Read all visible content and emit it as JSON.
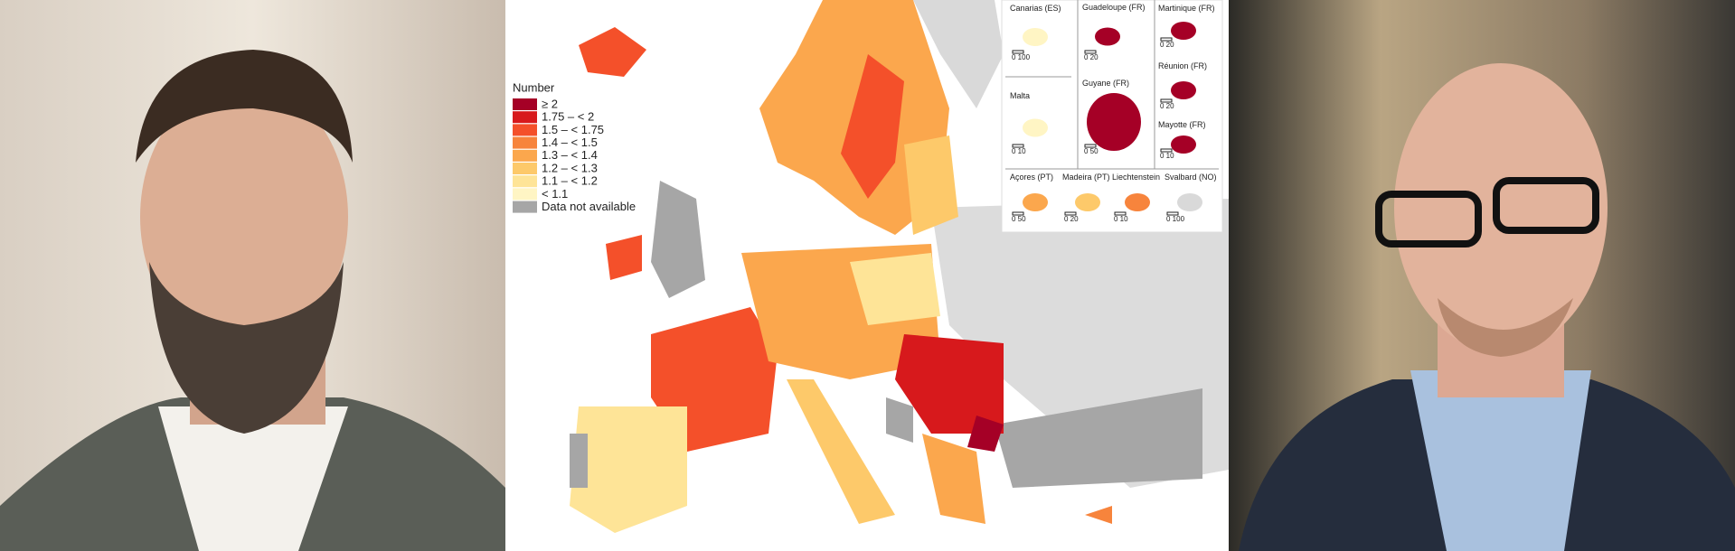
{
  "legend": {
    "title": "Number",
    "items": [
      {
        "label": "≥ 2",
        "color": "#a50026"
      },
      {
        "label": "1.75 – < 2",
        "color": "#d7191c"
      },
      {
        "label": "1.5 – < 1.75",
        "color": "#f4502a"
      },
      {
        "label": "1.4 – < 1.5",
        "color": "#f7843c"
      },
      {
        "label": "1.3 – < 1.4",
        "color": "#fba74d"
      },
      {
        "label": "1.2 – < 1.3",
        "color": "#fdc96a"
      },
      {
        "label": "1.1 – < 1.2",
        "color": "#fee497"
      },
      {
        "label": "< 1.1",
        "color": "#fff5c4"
      },
      {
        "label": "Data not available",
        "color": "#a6a6a6"
      }
    ]
  },
  "insets": [
    {
      "label": "Canarias (ES)",
      "scale": "0  100"
    },
    {
      "label": "Guadeloupe (FR)",
      "scale": "0  20"
    },
    {
      "label": "Martinique (FR)",
      "scale": "0  20"
    },
    {
      "label": "Malta",
      "scale": "0  10"
    },
    {
      "label": "Guyane (FR)",
      "scale": "0  50"
    },
    {
      "label": "Réunion (FR)",
      "scale": "0  20"
    },
    {
      "label": "Mayotte (FR)",
      "scale": "0  10"
    },
    {
      "label": "Açores (PT)",
      "scale": "0  50"
    },
    {
      "label": "Madeira (PT)",
      "scale": "0  20"
    },
    {
      "label": "Liechtenstein",
      "scale": "0  10"
    },
    {
      "label": "Svalbard (NO)",
      "scale": "0 100"
    }
  ]
}
